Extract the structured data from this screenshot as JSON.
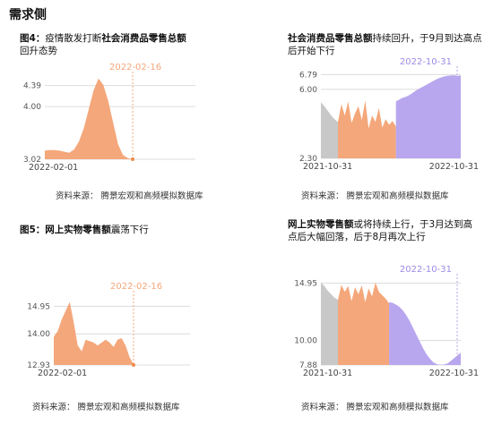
{
  "section_title": "需求侧",
  "panels": [
    {
      "title_bold": "图4：",
      "title_rest_bold": "社会消费品零售总额",
      "title_pre": "疫情散发打断",
      "title_post": "回升态势",
      "source": "资料来源：  腾景宏观和高频模拟数据库",
      "marker_label": "2022-02-16"
    },
    {
      "title_bold": "社会消费品零售总额",
      "title_post": "持续回升，于9月到达高点后开始下行",
      "source": "资料来源：  腾景宏观和高频模拟数据库",
      "marker_label": "2022-10-31"
    },
    {
      "title_bold": "图5：网上实物零售额",
      "title_post": "震荡下行",
      "source": "资料来源：  腾景宏观和高频模拟数据库",
      "marker_label": "2022-02-16"
    },
    {
      "title_bold": "网上实物零售额",
      "title_post": "或将持续上行，于3月达到高点后大幅回落，后于8月再次上行",
      "source": "资料来源：  腾景宏观和高频模拟数据库",
      "marker_label": "2022-10-31"
    }
  ],
  "chart_data": [
    {
      "type": "area",
      "x_start": "2022-02-01",
      "marker": "2022-02-16",
      "yticks": [
        3.02,
        4.0,
        4.39
      ],
      "ylim": [
        3.02,
        4.55
      ],
      "xtick_labels": [
        "2022-02-01"
      ],
      "series": [
        {
          "color": "#f4a77a",
          "values": [
            3.18,
            3.19,
            3.19,
            3.18,
            3.16,
            3.14,
            3.2,
            3.35,
            3.6,
            3.95,
            4.3,
            4.52,
            4.4,
            4.1,
            3.7,
            3.3,
            3.1,
            3.04,
            3.02
          ]
        }
      ]
    },
    {
      "type": "area",
      "x_start": "2021-10-31",
      "x_end": "2022-10-31",
      "marker": "2022-10-31",
      "yticks": [
        2.3,
        6.0,
        6.79
      ],
      "ylim": [
        2.3,
        6.95
      ],
      "xtick_labels": [
        "2021-10-31",
        "2022-10-31"
      ],
      "series": [
        {
          "color": "#c8c8c8",
          "values": [
            5.3,
            5.1,
            4.85,
            4.6,
            4.4,
            4.25
          ]
        },
        {
          "color": "#f4a77a",
          "values": [
            4.25,
            5.2,
            4.6,
            5.35,
            4.2,
            4.7,
            5.1,
            4.35,
            5.4,
            3.9,
            4.6,
            4.25,
            5.0,
            3.95,
            4.4,
            4.1,
            4.3,
            4.0
          ]
        },
        {
          "color": "#b8a6ee",
          "values": [
            5.35,
            5.45,
            5.55,
            5.6,
            5.7,
            5.82,
            5.95,
            6.05,
            6.15,
            6.25,
            6.35,
            6.45,
            6.55,
            6.62,
            6.68,
            6.72,
            6.74,
            6.75,
            6.72,
            6.74
          ]
        }
      ]
    },
    {
      "type": "area",
      "x_start": "2022-02-01",
      "marker": "2022-02-16",
      "yticks": [
        12.93,
        14.0,
        14.95
      ],
      "ylim": [
        12.93,
        15.3
      ],
      "xtick_labels": [
        "2022-02-01"
      ],
      "series": [
        {
          "color": "#f4a77a",
          "values": [
            13.9,
            14.1,
            14.5,
            14.8,
            15.1,
            14.4,
            13.6,
            13.4,
            13.8,
            13.75,
            13.7,
            13.6,
            13.7,
            13.8,
            13.7,
            13.55,
            13.8,
            13.85,
            13.6,
            13.2,
            12.95
          ]
        }
      ]
    },
    {
      "type": "area",
      "x_start": "2021-10-31",
      "x_end": "2022-10-31",
      "marker": "2022-10-31",
      "yticks": [
        7.88,
        10.0,
        14.95
      ],
      "ylim": [
        7.88,
        15.3
      ],
      "xtick_labels": [
        "2021-10-31",
        "2022-10-31"
      ],
      "series": [
        {
          "color": "#c8c8c8",
          "values": [
            15.0,
            14.7,
            14.3,
            14.0,
            13.7,
            13.5
          ]
        },
        {
          "color": "#f4a77a",
          "values": [
            13.5,
            14.8,
            14.2,
            14.7,
            13.4,
            14.6,
            14.0,
            14.75,
            13.3,
            14.5,
            13.8,
            15.0,
            14.2,
            13.9,
            13.6,
            13.2
          ]
        },
        {
          "color": "#b8a6ee",
          "values": [
            13.3,
            13.25,
            13.1,
            12.9,
            12.6,
            12.2,
            11.7,
            11.1,
            10.5,
            9.9,
            9.3,
            8.8,
            8.4,
            8.1,
            7.95,
            7.9,
            7.92,
            8.0,
            8.2,
            8.45,
            8.7,
            8.95
          ]
        }
      ]
    }
  ]
}
